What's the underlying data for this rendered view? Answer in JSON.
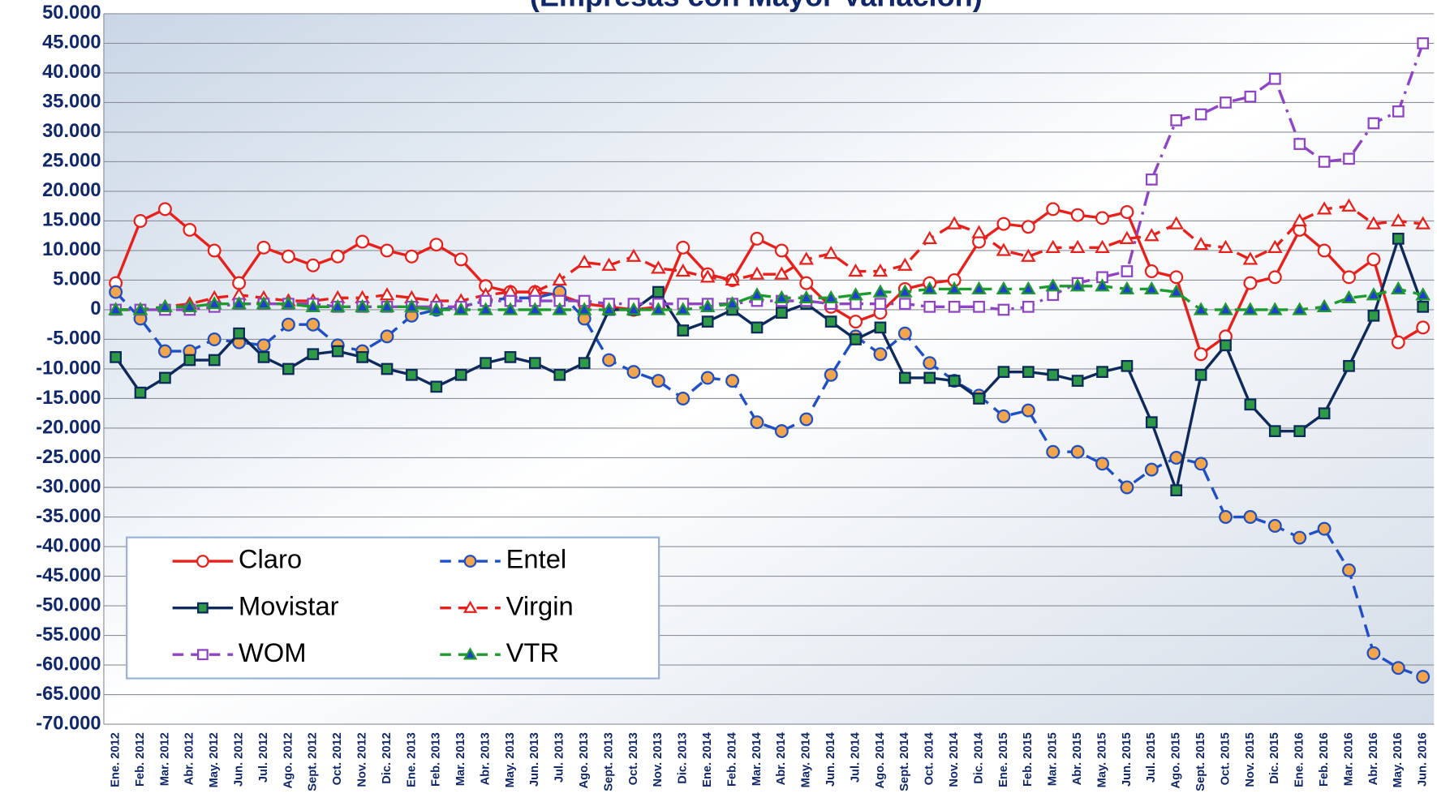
{
  "chart_data": {
    "type": "line",
    "title": "(Empresas con Mayor Variación)",
    "categories": [
      "Ene. 2012",
      "Feb. 2012",
      "Mar. 2012",
      "Abr. 2012",
      "May. 2012",
      "Jun. 2012",
      "Jul. 2012",
      "Ago. 2012",
      "Sept. 2012",
      "Oct. 2012",
      "Nov. 2012",
      "Dic. 2012",
      "Ene. 2013",
      "Feb. 2013",
      "Mar. 2013",
      "Abr. 2013",
      "May. 2013",
      "Jun. 2013",
      "Jul. 2013",
      "Ago. 2013",
      "Sept. 2013",
      "Oct. 2013",
      "Nov. 2013",
      "Dic. 2013",
      "Ene. 2014",
      "Feb. 2014",
      "Mar. 2014",
      "Abr. 2014",
      "May. 2014",
      "Jun. 2014",
      "Jul. 2014",
      "Ago. 2014",
      "Sept. 2014",
      "Oct. 2014",
      "Nov. 2014",
      "Dic. 2014",
      "Ene. 2015",
      "Feb. 2015",
      "Mar. 2015",
      "Abr. 2015",
      "May. 2015",
      "Jun. 2015",
      "Jul. 2015",
      "Ago. 2015",
      "Sept. 2015",
      "Oct. 2015",
      "Nov. 2015",
      "Dic. 2015",
      "Ene. 2016",
      "Feb. 2016",
      "Mar. 2016",
      "Abr. 2016",
      "May. 2016",
      "Jun. 2016"
    ],
    "series": [
      {
        "name": "Claro",
        "color": "#e8201c",
        "marker": "circle",
        "marker_fill": "#ffffff",
        "dash": "solid",
        "values": [
          4500,
          15000,
          17000,
          13500,
          10000,
          4500,
          10500,
          9000,
          7500,
          9000,
          11500,
          10000,
          9000,
          11000,
          8500,
          4000,
          3000,
          3000,
          2500,
          1000,
          500,
          0,
          500,
          10500,
          6000,
          5000,
          12000,
          10000,
          4500,
          500,
          -2000,
          -500,
          3500,
          4500,
          5000,
          11500,
          14500,
          14000,
          17000,
          16000,
          15500,
          16500,
          6500,
          5500,
          -7500,
          -4500,
          4500,
          5500,
          13500,
          10000,
          5500,
          8500,
          -5500,
          -3000
        ]
      },
      {
        "name": "Entel",
        "color": "#1f4fc4",
        "marker": "circle",
        "marker_fill": "#f2a54a",
        "dash": "dashed",
        "values": [
          3000,
          -1500,
          -7000,
          -7000,
          -5000,
          -5500,
          -6000,
          -2500,
          -2500,
          -6000,
          -7000,
          -4500,
          -1000,
          0,
          500,
          1500,
          2000,
          2000,
          3000,
          -1500,
          -8500,
          -10500,
          -12000,
          -15000,
          -11500,
          -12000,
          -19000,
          -20500,
          -18500,
          -11000,
          -4500,
          -7500,
          -4000,
          -9000,
          -12000,
          -14500,
          -18000,
          -17000,
          -24000,
          -24000,
          -26000,
          -30000,
          -27000,
          -25000,
          -26000,
          -35000,
          -35000,
          -36500,
          -38500,
          -37000,
          -44000,
          -58000,
          -60500,
          -62000
        ]
      },
      {
        "name": "Movistar",
        "color": "#0e2a5c",
        "marker": "square",
        "marker_fill": "#2e9a45",
        "dash": "solid",
        "values": [
          -8000,
          -14000,
          -11500,
          -8500,
          -8500,
          -4000,
          -8000,
          -10000,
          -7500,
          -7000,
          -8000,
          -10000,
          -11000,
          -13000,
          -11000,
          -9000,
          -8000,
          -9000,
          -11000,
          -9000,
          0,
          0,
          3000,
          -3500,
          -2000,
          0,
          -3000,
          -500,
          1000,
          -2000,
          -5000,
          -3000,
          -11500,
          -11500,
          -12000,
          -15000,
          -10500,
          -10500,
          -11000,
          -12000,
          -10500,
          -9500,
          -19000,
          -30500,
          -11000,
          -6000,
          -16000,
          -20500,
          -20500,
          -17500,
          -9500,
          -1000,
          12000,
          500
        ]
      },
      {
        "name": "Virgin",
        "color": "#e8201c",
        "marker": "triangle",
        "marker_fill": "#ffffff",
        "dash": "dashed",
        "values": [
          0,
          0,
          500,
          1000,
          2000,
          2500,
          2000,
          1500,
          1500,
          2000,
          2000,
          2500,
          2000,
          1500,
          1500,
          2500,
          3000,
          3000,
          5000,
          8000,
          7500,
          9000,
          7000,
          6500,
          5500,
          5000,
          6000,
          6000,
          8500,
          9500,
          6500,
          6500,
          7500,
          12000,
          14500,
          13000,
          10000,
          9000,
          10500,
          10500,
          10500,
          12000,
          12500,
          14500,
          11000,
          10500,
          8500,
          10500,
          15000,
          17000,
          17500,
          14500,
          15000,
          14500
        ]
      },
      {
        "name": "WOM",
        "color": "#8e44c4",
        "marker": "square",
        "marker_fill": "#ffffff",
        "dash": "dashdot",
        "values": [
          0,
          0,
          0,
          0,
          500,
          1000,
          1000,
          1000,
          1000,
          500,
          500,
          500,
          500,
          500,
          500,
          1500,
          1500,
          1500,
          1500,
          1500,
          1000,
          1000,
          1000,
          1000,
          1000,
          1000,
          1500,
          1500,
          1500,
          1000,
          1000,
          1000,
          1000,
          500,
          500,
          500,
          0,
          500,
          2500,
          4500,
          5500,
          6500,
          22000,
          32000,
          33000,
          35000,
          36000,
          39000,
          28000,
          25000,
          25500,
          31500,
          33500,
          45000
        ]
      },
      {
        "name": "VTR",
        "color": "#1f9a2e",
        "marker": "triangle",
        "marker_fill": "#1f3fd0",
        "dash": "dashed",
        "values": [
          0,
          0,
          500,
          500,
          1000,
          1000,
          1000,
          1000,
          500,
          500,
          500,
          500,
          500,
          0,
          0,
          0,
          0,
          0,
          0,
          0,
          0,
          0,
          0,
          0,
          500,
          1000,
          2500,
          2000,
          2000,
          2000,
          2500,
          3000,
          3000,
          3500,
          3500,
          3500,
          3500,
          3500,
          4000,
          4000,
          4000,
          3500,
          3500,
          3000,
          0,
          0,
          0,
          0,
          0,
          500,
          2000,
          2500,
          3500,
          2500
        ]
      }
    ],
    "ylim": [
      -70000,
      50000
    ],
    "yticks": [
      {
        "value": -70000,
        "label": "-70.000"
      },
      {
        "value": -65000,
        "label": "-65.000"
      },
      {
        "value": -60000,
        "label": "-60.000"
      },
      {
        "value": -55000,
        "label": "-55.000"
      },
      {
        "value": -50000,
        "label": "-50.000"
      },
      {
        "value": -45000,
        "label": "-45.000"
      },
      {
        "value": -40000,
        "label": "-40.000"
      },
      {
        "value": -35000,
        "label": "-35.000"
      },
      {
        "value": -30000,
        "label": "-30.000"
      },
      {
        "value": -25000,
        "label": "-25.000"
      },
      {
        "value": -20000,
        "label": "-20.000"
      },
      {
        "value": -15000,
        "label": "-15.000"
      },
      {
        "value": -10000,
        "label": "-10.000"
      },
      {
        "value": -5000,
        "label": "-5.000"
      },
      0,
      {
        "value": 5000,
        "label": "5.000"
      },
      {
        "value": 10000,
        "label": "10.000"
      },
      {
        "value": 15000,
        "label": "15.000"
      },
      {
        "value": 20000,
        "label": "20.000"
      },
      {
        "value": 25000,
        "label": "25.000"
      },
      {
        "value": 30000,
        "label": "30.000"
      },
      {
        "value": 35000,
        "label": "35.000"
      },
      {
        "value": 40000,
        "label": "40.000"
      },
      {
        "value": 45000,
        "label": "45.000"
      },
      {
        "value": 50000,
        "label": "50.000"
      }
    ],
    "grid": true,
    "legend": "lower-left"
  }
}
